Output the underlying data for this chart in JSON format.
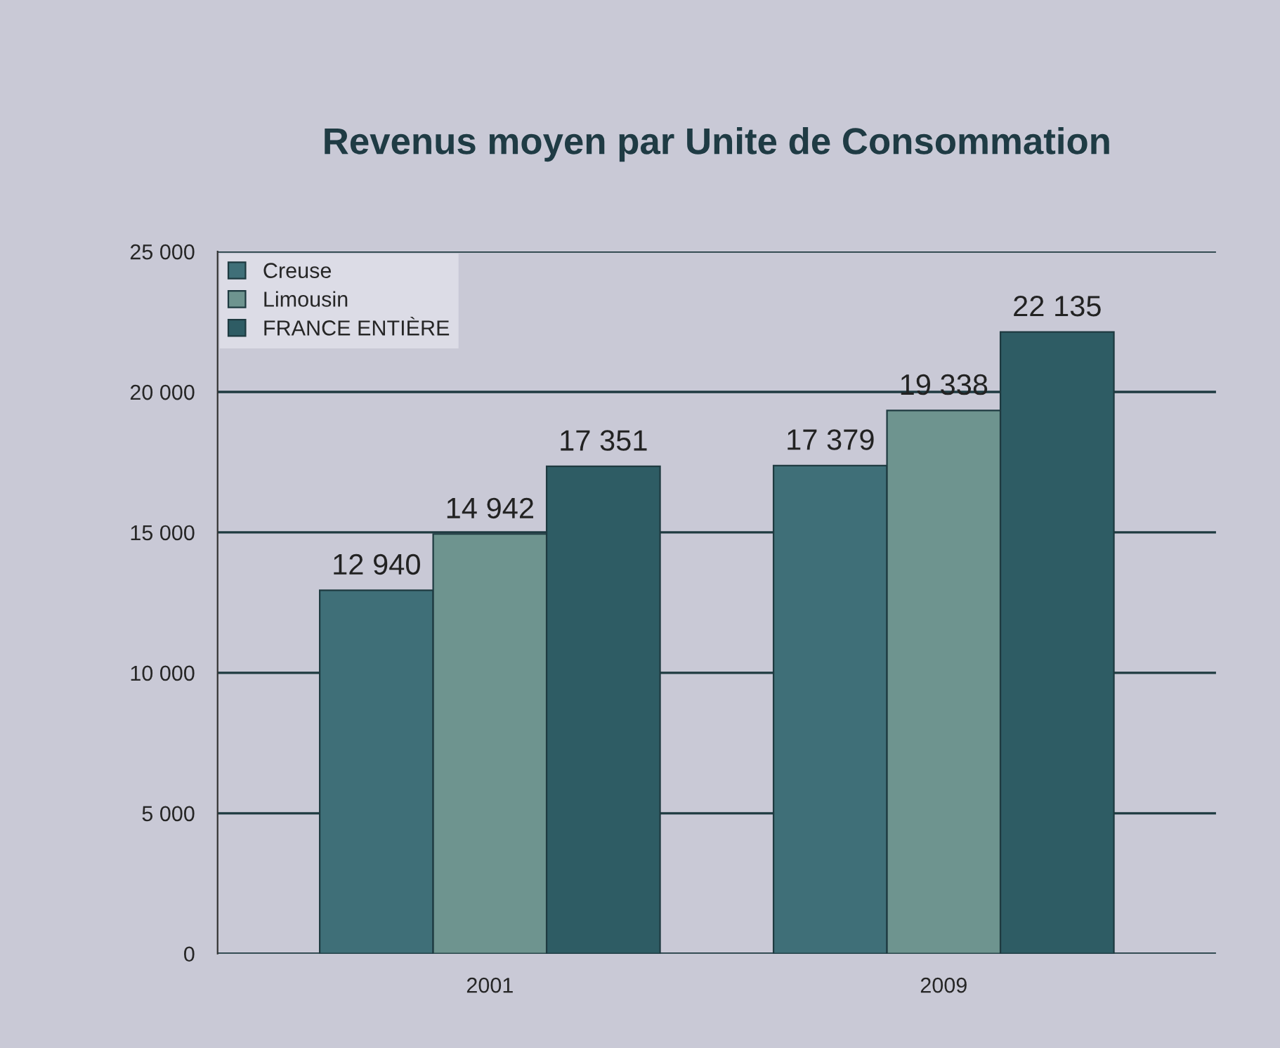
{
  "chart_data": {
    "type": "bar",
    "title": "Revenus moyen par Unite de Consommation",
    "categories": [
      "2001",
      "2009"
    ],
    "series": [
      {
        "name": "Creuse",
        "color": "#3f6f78",
        "values": [
          12940,
          17379
        ],
        "value_labels": [
          "12 940",
          "17 379"
        ]
      },
      {
        "name": "Limousin",
        "color": "#6e948f",
        "values": [
          14942,
          19338
        ],
        "value_labels": [
          "14 942",
          "19 338"
        ]
      },
      {
        "name": "FRANCE ENTIÈRE",
        "color": "#2e5c64",
        "values": [
          17351,
          22135
        ],
        "value_labels": [
          "17 351",
          "22 135"
        ]
      }
    ],
    "ylim": [
      0,
      25000
    ],
    "yticks": [
      {
        "value": 0,
        "label": "0"
      },
      {
        "value": 5000,
        "label": "5 000"
      },
      {
        "value": 10000,
        "label": "10 000"
      },
      {
        "value": 15000,
        "label": "15 000"
      },
      {
        "value": 20000,
        "label": "20 000"
      },
      {
        "value": 25000,
        "label": "25 000"
      }
    ],
    "grid": "y",
    "legend": "top left"
  }
}
